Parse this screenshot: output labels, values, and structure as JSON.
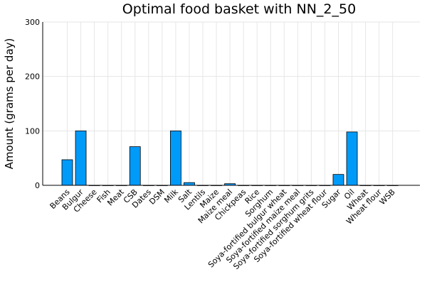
{
  "chart_data": {
    "type": "bar",
    "title": "Optimal food basket with NN_2_50",
    "xlabel": "",
    "ylabel": "Amount (grams per day)",
    "ylim": [
      0,
      300
    ],
    "yticks": [
      0,
      100,
      200,
      300
    ],
    "grid": true,
    "bar_color": "#009af9",
    "categories": [
      "Beans",
      "Bulgur",
      "Cheese",
      "Fish",
      "Meat",
      "CSB",
      "Dates",
      "DSM",
      "Milk",
      "Salt",
      "Lentils",
      "Maize",
      "Maize meal",
      "Chickpeas",
      "Rice",
      "Sorghum",
      "Soya-fortified bulgur wheat",
      "Soya-fortified maize meal",
      "Soya-fortified sorghum grits",
      "Soya-fortified wheat flour",
      "Sugar",
      "Oil",
      "Wheat",
      "Wheat flour",
      "WSB"
    ],
    "values": [
      47,
      100,
      0,
      0,
      0,
      71,
      0,
      0,
      100,
      5,
      0,
      0,
      3,
      0,
      0,
      0,
      0,
      0,
      0,
      0,
      20,
      98,
      0,
      0,
      0
    ]
  }
}
